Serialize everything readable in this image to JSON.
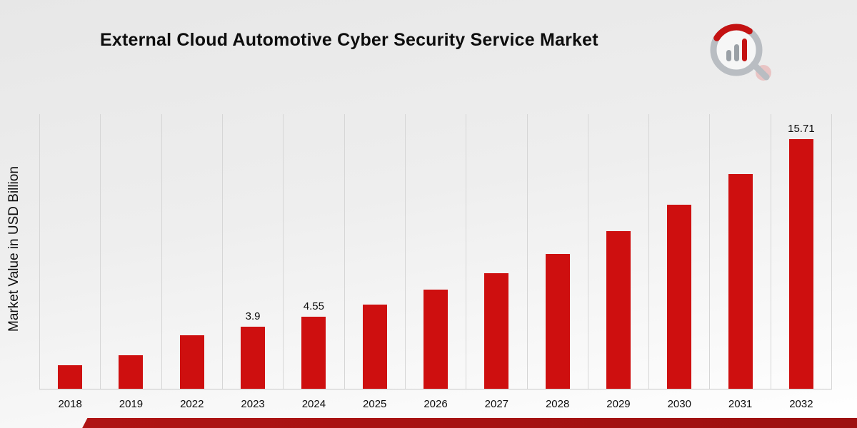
{
  "page": {
    "title": "External Cloud Automotive Cyber Security Service Market",
    "y_axis_label": "Market Value in USD Billion"
  },
  "chart_data": {
    "type": "bar",
    "title": "External Cloud Automotive Cyber Security Service Market",
    "xlabel": "",
    "ylabel": "Market Value in USD Billion",
    "categories": [
      "2018",
      "2019",
      "2022",
      "2023",
      "2024",
      "2025",
      "2026",
      "2027",
      "2028",
      "2029",
      "2030",
      "2031",
      "2032"
    ],
    "values": [
      1.5,
      2.1,
      3.35,
      3.9,
      4.55,
      5.3,
      6.25,
      7.3,
      8.5,
      9.95,
      11.6,
      13.55,
      15.71
    ],
    "value_labels": [
      "",
      "",
      "",
      "3.9",
      "4.55",
      "",
      "",
      "",
      "",
      "",
      "",
      "",
      "15.71"
    ],
    "ylim": [
      0,
      17.3
    ],
    "grid": "vertical",
    "legend": "none"
  },
  "colors": {
    "bar": "#ce0f0f",
    "grid": "#d6d6d6",
    "footer_bar": "#b11414",
    "logo_gray": "#a9aeb4",
    "logo_red": "#c41212"
  },
  "icons": {
    "brand_logo": "bar-chart-magnifier-logo"
  }
}
